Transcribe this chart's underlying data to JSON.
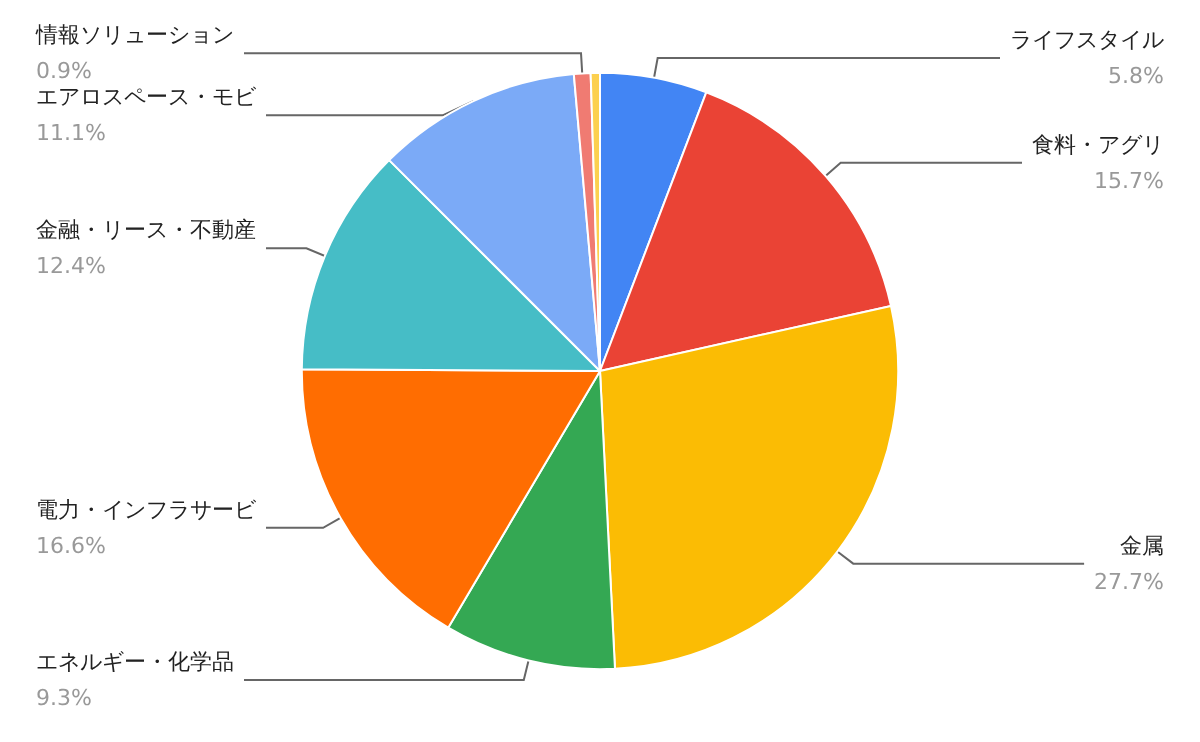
{
  "chart_data": {
    "type": "pie",
    "categories": [
      "ライフスタイル",
      "食料・アグリ",
      "金属",
      "エネルギー・化学品",
      "電力・インフラサービ",
      "金融・リース・不動産",
      "エアロスペース・モビ",
      "情報ソリューション",
      null
    ],
    "values": [
      5.8,
      15.7,
      27.7,
      9.3,
      16.6,
      12.4,
      11.1,
      0.9,
      0.5
    ],
    "value_labels": [
      "5.8%",
      "15.7%",
      "27.7%",
      "9.3%",
      "16.6%",
      "12.4%",
      "11.1%",
      "0.9%",
      null
    ],
    "colors": [
      "#4285f4",
      "#ea4335",
      "#fbbc04",
      "#34a853",
      "#ff6d01",
      "#46bdc6",
      "#7baaf7",
      "#f07b72",
      "#fcd04f"
    ],
    "legend": false
  }
}
